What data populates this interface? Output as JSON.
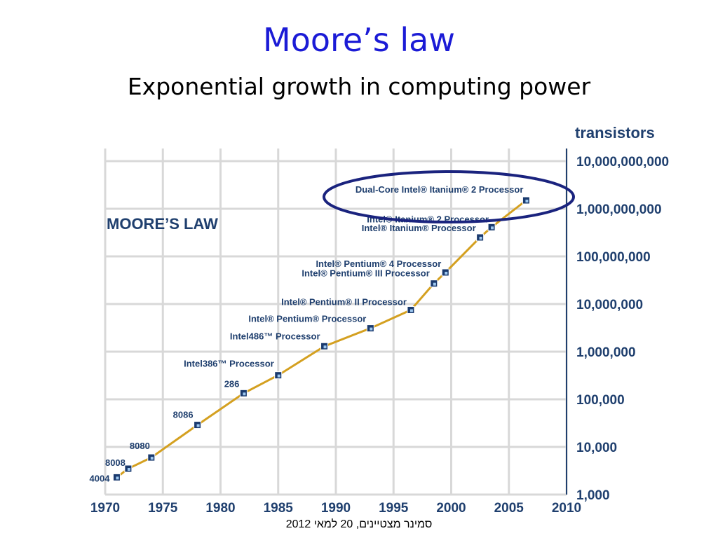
{
  "slide": {
    "title": "Moore’s law",
    "subtitle": "Exponential growth in computing power",
    "footer": "סמינר מצטיינים, 20 למאי 2012"
  },
  "colors": {
    "title": "#1b1bd6",
    "chart_text": "#1f3f6e",
    "line": "#d4a020",
    "grid": "#d8d8d8",
    "marker": "#1a3a6e",
    "highlight_ellipse": "#1a237e"
  },
  "chart_data": {
    "type": "line",
    "title": "MOORE’S LAW",
    "ylabel": "transistors",
    "xlabel": "",
    "yscale": "log",
    "xlim": [
      1970,
      2010
    ],
    "ylim": [
      1000,
      10000000000
    ],
    "grid": true,
    "x_ticks": [
      1970,
      1975,
      1980,
      1985,
      1990,
      1995,
      2000,
      2005,
      2010
    ],
    "y_ticks": [
      1000,
      10000,
      100000,
      1000000,
      10000000,
      100000000,
      1000000000,
      10000000000
    ],
    "y_tick_labels": [
      "1,000",
      "10,000",
      "100,000",
      "1,000,000",
      "10,000,000",
      "100,000,000",
      "1,000,000,000",
      "10,000,000,000"
    ],
    "points": [
      {
        "label": "4004",
        "x": 1971,
        "y": 2300
      },
      {
        "label": "8008",
        "x": 1972,
        "y": 3500
      },
      {
        "label": "8080",
        "x": 1974,
        "y": 6000
      },
      {
        "label": "8086",
        "x": 1978,
        "y": 29000
      },
      {
        "label": "286",
        "x": 1982,
        "y": 134000
      },
      {
        "label": "Intel386™ Processor",
        "x": 1985,
        "y": 320000
      },
      {
        "label": "Intel486™ Processor",
        "x": 1989,
        "y": 1300000
      },
      {
        "label": "Intel® Pentium® Processor",
        "x": 1993,
        "y": 3100000
      },
      {
        "label": "Intel® Pentium® II Processor",
        "x": 1996.5,
        "y": 7500000
      },
      {
        "label": "Intel® Pentium® III Processor",
        "x": 1998.5,
        "y": 27000000
      },
      {
        "label": "Intel® Pentium® 4 Processor",
        "x": 1999.5,
        "y": 46000000
      },
      {
        "label": "Intel® Itanium® Processor",
        "x": 2002.5,
        "y": 250000000
      },
      {
        "label": "Intel® Itanium® 2 Processor",
        "x": 2003.5,
        "y": 410000000
      },
      {
        "label": "Dual-Core Intel® Itanium® 2 Processor",
        "x": 2006.5,
        "y": 1500000000
      }
    ],
    "highlight": "Dual-Core Intel® Itanium® 2 Processor"
  }
}
